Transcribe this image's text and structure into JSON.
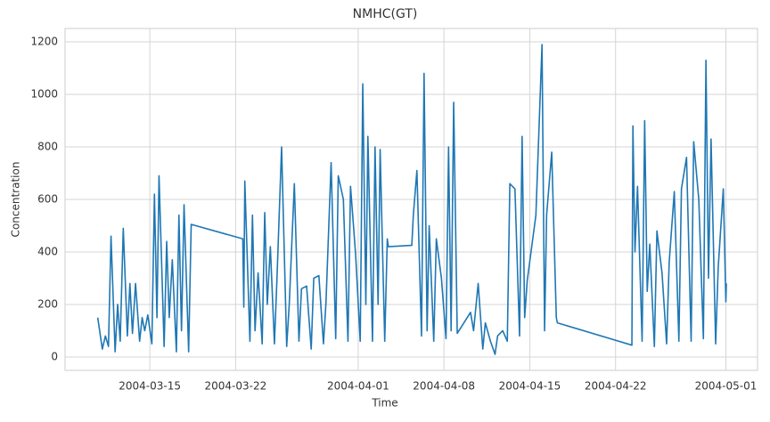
{
  "chart_data": {
    "type": "line",
    "title": "NMHC(GT)",
    "x_label": "Time",
    "y_label": "Concentration",
    "color": "#1f77b4",
    "grid": true,
    "x": [
      "2004-03-10 18:00",
      "2004-03-11 03:00",
      "2004-03-11 09:00",
      "2004-03-11 15:00",
      "2004-03-11 20:00",
      "2004-03-12 04:00",
      "2004-03-12 09:00",
      "2004-03-12 14:00",
      "2004-03-12 20:00",
      "2004-03-13 04:00",
      "2004-03-13 09:00",
      "2004-03-13 14:00",
      "2004-03-13 20:00",
      "2004-03-14 04:00",
      "2004-03-14 09:00",
      "2004-03-14 14:00",
      "2004-03-14 20:00",
      "2004-03-15 04:00",
      "2004-03-15 09:00",
      "2004-03-15 14:00",
      "2004-03-15 18:00",
      "2004-03-16 04:00",
      "2004-03-16 09:00",
      "2004-03-16 14:00",
      "2004-03-16 20:00",
      "2004-03-17 04:00",
      "2004-03-17 09:00",
      "2004-03-17 14:00",
      "2004-03-17 19:00",
      "2004-03-18 04:00",
      "2004-03-18 09:00",
      "2004-03-22 14:00",
      "2004-03-22 16:00",
      "2004-03-22 18:00",
      "2004-03-23 04:00",
      "2004-03-23 09:00",
      "2004-03-23 14:00",
      "2004-03-23 20:00",
      "2004-03-24 04:00",
      "2004-03-24 09:00",
      "2004-03-24 14:00",
      "2004-03-24 20:00",
      "2004-03-25 04:00",
      "2004-03-25 09:00",
      "2004-03-25 18:00",
      "2004-03-26 04:00",
      "2004-03-26 09:00",
      "2004-03-26 19:00",
      "2004-03-27 04:00",
      "2004-03-27 09:00",
      "2004-03-27 19:00",
      "2004-03-28 04:00",
      "2004-03-28 09:00",
      "2004-03-28 19:00",
      "2004-03-29 04:00",
      "2004-03-29 09:00",
      "2004-03-29 19:00",
      "2004-03-30 04:00",
      "2004-03-30 09:00",
      "2004-03-30 19:00",
      "2004-03-31 04:00",
      "2004-03-31 09:00",
      "2004-03-31 19:00",
      "2004-04-01 04:00",
      "2004-04-01 09:00",
      "2004-04-01 15:00",
      "2004-04-01 19:00",
      "2004-04-02 04:00",
      "2004-04-02 09:00",
      "2004-04-02 15:00",
      "2004-04-02 19:00",
      "2004-04-03 04:00",
      "2004-04-03 09:00",
      "2004-04-03 11:00",
      "2004-04-05 09:00",
      "2004-04-05 12:00",
      "2004-04-05 19:00",
      "2004-04-06 04:00",
      "2004-04-06 09:00",
      "2004-04-06 15:00",
      "2004-04-06 19:00",
      "2004-04-07 04:00",
      "2004-04-07 09:00",
      "2004-04-07 19:00",
      "2004-04-08 04:00",
      "2004-04-08 09:00",
      "2004-04-08 14:00",
      "2004-04-08 19:00",
      "2004-04-09 02:00",
      "2004-04-10 04:00",
      "2004-04-10 10:00",
      "2004-04-10 19:00",
      "2004-04-11 04:00",
      "2004-04-11 09:00",
      "2004-04-11 19:00",
      "2004-04-12 04:00",
      "2004-04-12 09:00",
      "2004-04-12 19:00",
      "2004-04-13 04:00",
      "2004-04-13 09:00",
      "2004-04-13 19:00",
      "2004-04-14 04:00",
      "2004-04-14 09:00",
      "2004-04-14 14:00",
      "2004-04-14 19:00",
      "2004-04-15 12:00",
      "2004-04-15 19:00",
      "2004-04-16 00:00",
      "2004-04-16 05:00",
      "2004-04-16 09:00",
      "2004-04-16 19:00",
      "2004-04-17 04:00",
      "2004-04-17 06:00",
      "2004-04-23 08:00",
      "2004-04-23 10:00",
      "2004-04-23 14:00",
      "2004-04-23 19:00",
      "2004-04-24 04:00",
      "2004-04-24 09:00",
      "2004-04-24 14:00",
      "2004-04-24 19:00",
      "2004-04-25 04:00",
      "2004-04-25 09:00",
      "2004-04-25 19:00",
      "2004-04-26 04:00",
      "2004-04-26 09:00",
      "2004-04-26 19:00",
      "2004-04-27 04:00",
      "2004-04-27 09:00",
      "2004-04-27 19:00",
      "2004-04-28 04:00",
      "2004-04-28 09:00",
      "2004-04-28 19:00",
      "2004-04-29 04:00",
      "2004-04-29 09:00",
      "2004-04-29 14:00",
      "2004-04-29 19:00",
      "2004-04-30 04:00",
      "2004-04-30 09:00",
      "2004-04-30 19:00",
      "2004-05-01 00:00",
      "2004-05-01 01:00"
    ],
    "values": [
      150,
      30,
      80,
      40,
      460,
      20,
      200,
      60,
      490,
      80,
      280,
      90,
      280,
      60,
      150,
      100,
      160,
      50,
      620,
      150,
      690,
      40,
      440,
      150,
      370,
      20,
      540,
      100,
      580,
      20,
      505,
      450,
      190,
      670,
      60,
      540,
      100,
      320,
      50,
      550,
      200,
      420,
      50,
      300,
      800,
      40,
      200,
      660,
      60,
      260,
      270,
      30,
      300,
      310,
      50,
      210,
      740,
      70,
      690,
      600,
      60,
      650,
      390,
      60,
      1040,
      200,
      840,
      60,
      800,
      200,
      790,
      60,
      450,
      420,
      425,
      540,
      710,
      80,
      1080,
      100,
      500,
      60,
      450,
      300,
      70,
      800,
      100,
      970,
      90,
      170,
      100,
      280,
      30,
      130,
      60,
      10,
      80,
      100,
      60,
      660,
      640,
      80,
      840,
      150,
      290,
      540,
      920,
      1190,
      100,
      540,
      780,
      150,
      130,
      45,
      880,
      400,
      650,
      60,
      900,
      250,
      430,
      40,
      480,
      320,
      50,
      360,
      630,
      60,
      640,
      760,
      60,
      820,
      600,
      70,
      1130,
      300,
      830,
      50,
      340,
      640,
      210,
      280
    ],
    "xlim": [
      "2004-03-08 02:00",
      "2004-05-03 14:00"
    ],
    "xticks": [
      "2004-03-15",
      "2004-03-22",
      "2004-04-01",
      "2004-04-08",
      "2004-04-15",
      "2004-04-22",
      "2004-05-01"
    ],
    "ylim": [
      -51,
      1251
    ],
    "yticks": [
      0,
      200,
      400,
      600,
      800,
      1000,
      1200
    ]
  }
}
